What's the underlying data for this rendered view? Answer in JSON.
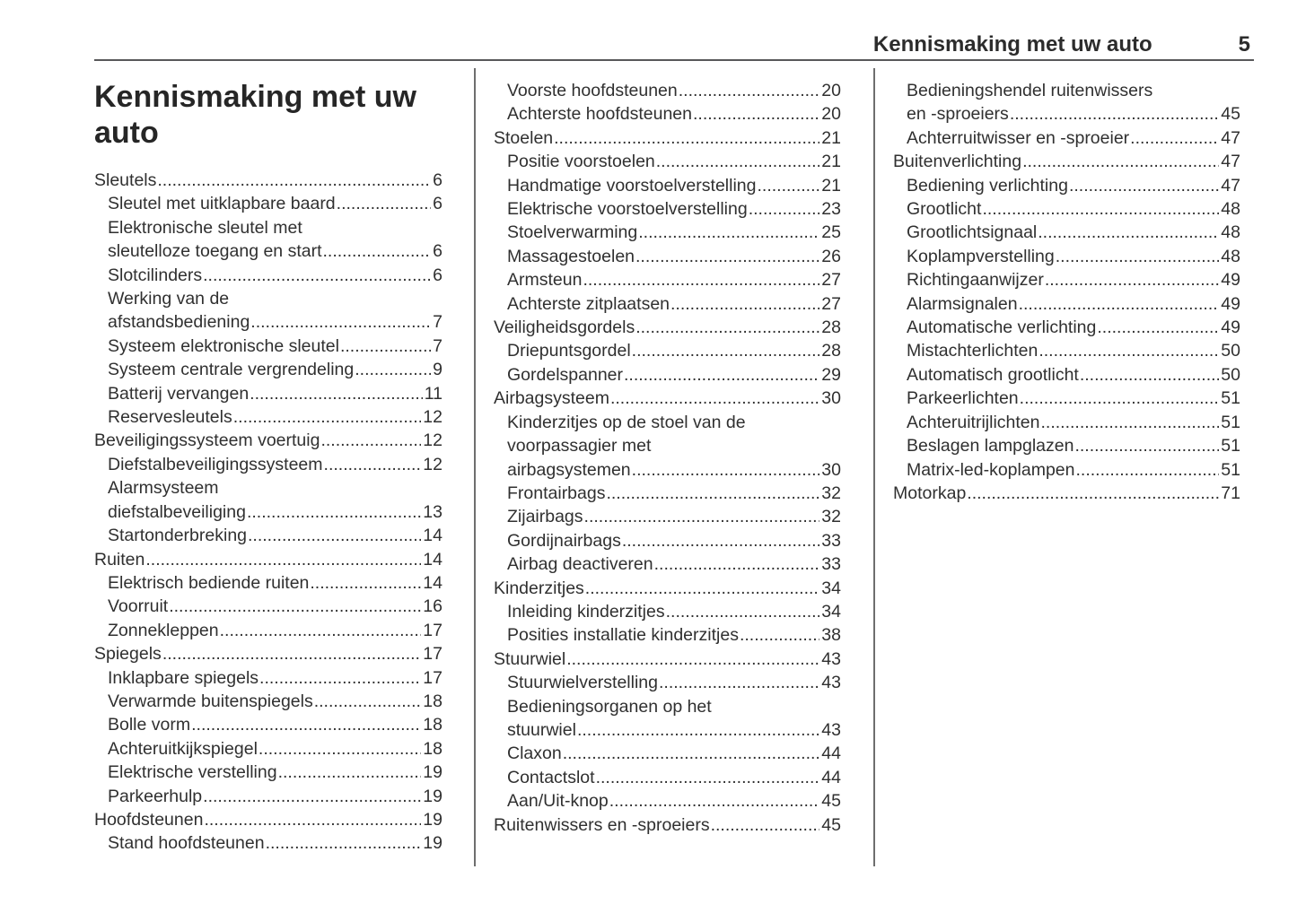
{
  "header": {
    "title": "Kennismaking met uw auto",
    "page_number": "5"
  },
  "chapter_title": "Kennismaking met uw auto",
  "colors": {
    "background": "#ffffff",
    "text": "#303030",
    "header_rule": "#58585a",
    "column_divider": "#6e6e6e"
  },
  "columns": [
    {
      "entries": [
        {
          "lines": [
            "Sleutels"
          ],
          "page": "6",
          "level": 0
        },
        {
          "lines": [
            "Sleutel met uitklapbare baard"
          ],
          "page": "6",
          "level": 1
        },
        {
          "lines": [
            "Elektronische sleutel met",
            "sleutelloze toegang en start"
          ],
          "page": "6",
          "level": 1
        },
        {
          "lines": [
            "Slotcilinders"
          ],
          "page": "6",
          "level": 1
        },
        {
          "lines": [
            "Werking van de",
            "afstandsbediening"
          ],
          "page": "7",
          "level": 1
        },
        {
          "lines": [
            "Systeem elektronische sleutel"
          ],
          "page": "7",
          "level": 1
        },
        {
          "lines": [
            "Systeem centrale vergrendeling"
          ],
          "page": "9",
          "level": 1
        },
        {
          "lines": [
            "Batterij vervangen"
          ],
          "page": "11",
          "level": 1
        },
        {
          "lines": [
            "Reservesleutels"
          ],
          "page": "12",
          "level": 1
        },
        {
          "lines": [
            "Beveiligingssysteem voertuig"
          ],
          "page": "12",
          "level": 0
        },
        {
          "lines": [
            "Diefstalbeveiligingssysteem"
          ],
          "page": "12",
          "level": 1
        },
        {
          "lines": [
            "Alarmsysteem",
            "diefstalbeveiliging"
          ],
          "page": "13",
          "level": 1
        },
        {
          "lines": [
            "Startonderbreking"
          ],
          "page": "14",
          "level": 1
        },
        {
          "lines": [
            "Ruiten"
          ],
          "page": "14",
          "level": 0
        },
        {
          "lines": [
            "Elektrisch bediende ruiten"
          ],
          "page": "14",
          "level": 1
        },
        {
          "lines": [
            "Voorruit"
          ],
          "page": "16",
          "level": 1
        },
        {
          "lines": [
            "Zonnekleppen"
          ],
          "page": "17",
          "level": 1
        },
        {
          "lines": [
            "Spiegels"
          ],
          "page": "17",
          "level": 0
        },
        {
          "lines": [
            "Inklapbare spiegels"
          ],
          "page": "17",
          "level": 1
        },
        {
          "lines": [
            "Verwarmde buitenspiegels"
          ],
          "page": "18",
          "level": 1
        },
        {
          "lines": [
            "Bolle vorm"
          ],
          "page": "18",
          "level": 1
        },
        {
          "lines": [
            "Achteruitkijkspiegel"
          ],
          "page": "18",
          "level": 1
        },
        {
          "lines": [
            "Elektrische verstelling"
          ],
          "page": "19",
          "level": 1
        },
        {
          "lines": [
            "Parkeerhulp"
          ],
          "page": "19",
          "level": 1
        },
        {
          "lines": [
            "Hoofdsteunen"
          ],
          "page": "19",
          "level": 0
        },
        {
          "lines": [
            "Stand hoofdsteunen"
          ],
          "page": "19",
          "level": 1
        }
      ]
    },
    {
      "entries": [
        {
          "lines": [
            "Voorste hoofdsteunen"
          ],
          "page": "20",
          "level": 1
        },
        {
          "lines": [
            "Achterste hoofdsteunen"
          ],
          "page": "20",
          "level": 1
        },
        {
          "lines": [
            "Stoelen"
          ],
          "page": "21",
          "level": 0
        },
        {
          "lines": [
            "Positie voorstoelen"
          ],
          "page": "21",
          "level": 1
        },
        {
          "lines": [
            "Handmatige voorstoelverstelling"
          ],
          "page": "21",
          "level": 1
        },
        {
          "lines": [
            "Elektrische voorstoelverstelling"
          ],
          "page": "23",
          "level": 1
        },
        {
          "lines": [
            "Stoelverwarming"
          ],
          "page": "25",
          "level": 1
        },
        {
          "lines": [
            "Massagestoelen"
          ],
          "page": "26",
          "level": 1
        },
        {
          "lines": [
            "Armsteun"
          ],
          "page": "27",
          "level": 1
        },
        {
          "lines": [
            "Achterste zitplaatsen"
          ],
          "page": "27",
          "level": 1
        },
        {
          "lines": [
            "Veiligheidsgordels"
          ],
          "page": "28",
          "level": 0
        },
        {
          "lines": [
            "Driepuntsgordel"
          ],
          "page": "28",
          "level": 1
        },
        {
          "lines": [
            "Gordelspanner"
          ],
          "page": "29",
          "level": 1
        },
        {
          "lines": [
            "Airbagsysteem"
          ],
          "page": "30",
          "level": 0
        },
        {
          "lines": [
            "Kinderzitjes op de stoel van de",
            "voorpassagier met",
            "airbagsystemen"
          ],
          "page": "30",
          "level": 1
        },
        {
          "lines": [
            "Frontairbags"
          ],
          "page": "32",
          "level": 1
        },
        {
          "lines": [
            "Zijairbags"
          ],
          "page": "32",
          "level": 1
        },
        {
          "lines": [
            "Gordijnairbags"
          ],
          "page": "33",
          "level": 1
        },
        {
          "lines": [
            "Airbag deactiveren"
          ],
          "page": "33",
          "level": 1
        },
        {
          "lines": [
            "Kinderzitjes"
          ],
          "page": "34",
          "level": 0
        },
        {
          "lines": [
            "Inleiding kinderzitjes"
          ],
          "page": "34",
          "level": 1
        },
        {
          "lines": [
            "Posities installatie kinderzitjes"
          ],
          "page": "38",
          "level": 1
        },
        {
          "lines": [
            "Stuurwiel"
          ],
          "page": "43",
          "level": 0
        },
        {
          "lines": [
            "Stuurwielverstelling"
          ],
          "page": "43",
          "level": 1
        },
        {
          "lines": [
            "Bedieningsorganen op het",
            "stuurwiel"
          ],
          "page": "43",
          "level": 1
        },
        {
          "lines": [
            "Claxon"
          ],
          "page": "44",
          "level": 1
        },
        {
          "lines": [
            "Contactslot"
          ],
          "page": "44",
          "level": 1
        },
        {
          "lines": [
            "Aan/Uit-knop"
          ],
          "page": "45",
          "level": 1
        },
        {
          "lines": [
            "Ruitenwissers en -sproeiers"
          ],
          "page": "45",
          "level": 0
        }
      ]
    },
    {
      "entries": [
        {
          "lines": [
            "Bedieningshendel ruitenwissers",
            "en -sproeiers"
          ],
          "page": "45",
          "level": 1
        },
        {
          "lines": [
            "Achterruitwisser en -sproeier"
          ],
          "page": "47",
          "level": 1
        },
        {
          "lines": [
            "Buitenverlichting"
          ],
          "page": "47",
          "level": 0
        },
        {
          "lines": [
            "Bediening verlichting"
          ],
          "page": "47",
          "level": 1
        },
        {
          "lines": [
            "Grootlicht"
          ],
          "page": "48",
          "level": 1
        },
        {
          "lines": [
            "Grootlichtsignaal"
          ],
          "page": "48",
          "level": 1
        },
        {
          "lines": [
            "Koplampverstelling"
          ],
          "page": "48",
          "level": 1
        },
        {
          "lines": [
            "Richtingaanwijzer"
          ],
          "page": "49",
          "level": 1
        },
        {
          "lines": [
            "Alarmsignalen"
          ],
          "page": "49",
          "level": 1
        },
        {
          "lines": [
            "Automatische verlichting"
          ],
          "page": "49",
          "level": 1
        },
        {
          "lines": [
            "Mistachterlichten"
          ],
          "page": "50",
          "level": 1
        },
        {
          "lines": [
            "Automatisch grootlicht"
          ],
          "page": "50",
          "level": 1
        },
        {
          "lines": [
            "Parkeerlichten"
          ],
          "page": "51",
          "level": 1
        },
        {
          "lines": [
            "Achteruitrijlichten"
          ],
          "page": "51",
          "level": 1
        },
        {
          "lines": [
            "Beslagen lampglazen"
          ],
          "page": "51",
          "level": 1
        },
        {
          "lines": [
            "Matrix-led-koplampen"
          ],
          "page": "51",
          "level": 1
        },
        {
          "lines": [
            "Motorkap"
          ],
          "page": "71",
          "level": 0
        }
      ]
    }
  ]
}
